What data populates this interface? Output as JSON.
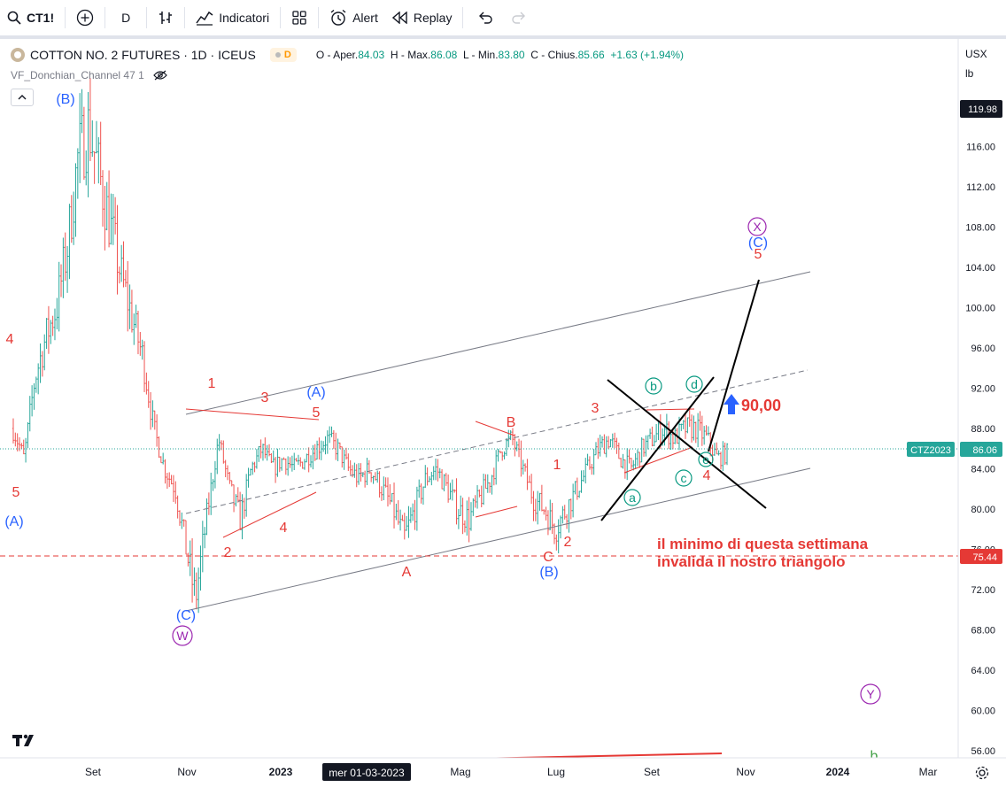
{
  "toolbar": {
    "symbol": "CT1!",
    "interval": "D",
    "indicators_label": "Indicatori",
    "alert_label": "Alert",
    "replay_label": "Replay"
  },
  "legend": {
    "title": "COTTON NO. 2 FUTURES · 1D · ICEUS",
    "badge": "D",
    "open_label": "O",
    "open_text": "- Aper.",
    "open_value": "84.03",
    "high_label": "H",
    "high_text": "- Max.",
    "high_value": "86.08",
    "low_label": "L",
    "low_text": "- Min.",
    "low_value": "83.80",
    "close_label": "C",
    "close_text": "- Chius.",
    "close_value": "85.66",
    "change": "+1.63 (+1.94%)",
    "indicator_name": "VF_Donchian_Channel 47 1"
  },
  "axis_selectors": {
    "currency": "USX",
    "unit": "lb"
  },
  "price_axis": {
    "ticks": [
      "116.00",
      "112.00",
      "108.00",
      "104.00",
      "100.00",
      "96.00",
      "92.00",
      "88.00",
      "84.00",
      "80.00",
      "76.00",
      "72.00",
      "68.00",
      "64.00",
      "60.00",
      "56.00"
    ],
    "top_label": "119.98",
    "current_symbol": "CTZ2023",
    "current_price": "86.06",
    "level_price": "75.44"
  },
  "time_axis": {
    "ticks": [
      "Set",
      "Nov",
      "2023",
      "Mag",
      "Lug",
      "Set",
      "Nov",
      "2024",
      "Mar"
    ],
    "crosshair_label": "mer 01-03-2023"
  },
  "annotations": {
    "wave_labels": [
      {
        "text": "(B)",
        "color": "#2962ff"
      },
      {
        "text": "4",
        "color": "#e53935"
      },
      {
        "text": "5",
        "color": "#e53935"
      },
      {
        "text": "(A)",
        "color": "#2962ff"
      },
      {
        "text": "1",
        "color": "#e53935"
      },
      {
        "text": "3",
        "color": "#e53935"
      },
      {
        "text": "(A)",
        "color": "#2962ff"
      },
      {
        "text": "5",
        "color": "#e53935"
      },
      {
        "text": "2",
        "color": "#e53935"
      },
      {
        "text": "4",
        "color": "#e53935"
      },
      {
        "text": "(C)",
        "color": "#2962ff"
      },
      {
        "text": "A",
        "color": "#e53935"
      },
      {
        "text": "B",
        "color": "#e53935"
      },
      {
        "text": "1",
        "color": "#e53935"
      },
      {
        "text": "C",
        "color": "#e53935"
      },
      {
        "text": "(B)",
        "color": "#2962ff"
      },
      {
        "text": "2",
        "color": "#e53935"
      },
      {
        "text": "3",
        "color": "#e53935"
      },
      {
        "text": "4",
        "color": "#e53935"
      },
      {
        "text": "(C)",
        "color": "#2962ff"
      },
      {
        "text": "5",
        "color": "#e53935"
      },
      {
        "text": "b",
        "color": "#43a047"
      }
    ],
    "circled_labels": [
      {
        "text": "W",
        "color": "#9c27b0"
      },
      {
        "text": "X",
        "color": "#9c27b0"
      },
      {
        "text": "Y",
        "color": "#9c27b0"
      },
      {
        "text": "a",
        "color": "#089981"
      },
      {
        "text": "b",
        "color": "#089981"
      },
      {
        "text": "c",
        "color": "#089981"
      },
      {
        "text": "d",
        "color": "#089981"
      },
      {
        "text": "e",
        "color": "#089981"
      }
    ],
    "target_label": "90,00",
    "note_line1": "il minimo di questa settimana",
    "note_line2": "invalida il nostro triangolo"
  },
  "colors": {
    "up": "#26a69a",
    "down": "#ef5350",
    "annotation_red": "#e53935",
    "wave_blue": "#2962ff",
    "circle_purple": "#9c27b0",
    "circle_green": "#089981",
    "level_line": "#e53935",
    "current_badge": "#26a69a"
  },
  "chart_data": {
    "type": "candlestick",
    "title": "COTTON NO. 2 FUTURES · 1D · ICEUS",
    "ylim": [
      55,
      121
    ],
    "yscale": "linear",
    "grid": false,
    "close_path": [
      {
        "date": "2022-07-05",
        "close": 88
      },
      {
        "date": "2022-07-12",
        "close": 85
      },
      {
        "date": "2022-07-19",
        "close": 93
      },
      {
        "date": "2022-07-26",
        "close": 97
      },
      {
        "date": "2022-08-02",
        "close": 100
      },
      {
        "date": "2022-08-09",
        "close": 106
      },
      {
        "date": "2022-08-16",
        "close": 115
      },
      {
        "date": "2022-08-23",
        "close": 118
      },
      {
        "date": "2022-08-30",
        "close": 113
      },
      {
        "date": "2022-09-06",
        "close": 108
      },
      {
        "date": "2022-09-13",
        "close": 103
      },
      {
        "date": "2022-09-20",
        "close": 99
      },
      {
        "date": "2022-09-27",
        "close": 95
      },
      {
        "date": "2022-10-04",
        "close": 88
      },
      {
        "date": "2022-10-11",
        "close": 84
      },
      {
        "date": "2022-10-18",
        "close": 82
      },
      {
        "date": "2022-10-25",
        "close": 76
      },
      {
        "date": "2022-10-31",
        "close": 71
      },
      {
        "date": "2022-11-08",
        "close": 80
      },
      {
        "date": "2022-11-15",
        "close": 87
      },
      {
        "date": "2022-11-22",
        "close": 82
      },
      {
        "date": "2022-11-29",
        "close": 79
      },
      {
        "date": "2022-12-06",
        "close": 84
      },
      {
        "date": "2022-12-13",
        "close": 86
      },
      {
        "date": "2022-12-20",
        "close": 84
      },
      {
        "date": "2022-12-27",
        "close": 85
      },
      {
        "date": "2023-01-03",
        "close": 84
      },
      {
        "date": "2023-01-10",
        "close": 85
      },
      {
        "date": "2023-01-17",
        "close": 86
      },
      {
        "date": "2023-01-24",
        "close": 87
      },
      {
        "date": "2023-01-31",
        "close": 86
      },
      {
        "date": "2023-02-07",
        "close": 84
      },
      {
        "date": "2023-02-14",
        "close": 83
      },
      {
        "date": "2023-02-21",
        "close": 84
      },
      {
        "date": "2023-03-01",
        "close": 82
      },
      {
        "date": "2023-03-08",
        "close": 80
      },
      {
        "date": "2023-03-15",
        "close": 77
      },
      {
        "date": "2023-03-22",
        "close": 80
      },
      {
        "date": "2023-03-29",
        "close": 83
      },
      {
        "date": "2023-04-05",
        "close": 84
      },
      {
        "date": "2023-04-12",
        "close": 82
      },
      {
        "date": "2023-04-19",
        "close": 80
      },
      {
        "date": "2023-04-26",
        "close": 79
      },
      {
        "date": "2023-05-03",
        "close": 81
      },
      {
        "date": "2023-05-10",
        "close": 83
      },
      {
        "date": "2023-05-17",
        "close": 86
      },
      {
        "date": "2023-05-24",
        "close": 87
      },
      {
        "date": "2023-05-31",
        "close": 84
      },
      {
        "date": "2023-06-07",
        "close": 81
      },
      {
        "date": "2023-06-14",
        "close": 80
      },
      {
        "date": "2023-06-21",
        "close": 78
      },
      {
        "date": "2023-06-28",
        "close": 80
      },
      {
        "date": "2023-07-05",
        "close": 82
      },
      {
        "date": "2023-07-12",
        "close": 84
      },
      {
        "date": "2023-07-19",
        "close": 86
      },
      {
        "date": "2023-07-26",
        "close": 87
      },
      {
        "date": "2023-08-02",
        "close": 85
      },
      {
        "date": "2023-08-09",
        "close": 84
      },
      {
        "date": "2023-08-16",
        "close": 86
      },
      {
        "date": "2023-08-23",
        "close": 87
      },
      {
        "date": "2023-08-30",
        "close": 88
      },
      {
        "date": "2023-09-06",
        "close": 87
      },
      {
        "date": "2023-09-13",
        "close": 88
      },
      {
        "date": "2023-09-20",
        "close": 88
      },
      {
        "date": "2023-09-27",
        "close": 87
      },
      {
        "date": "2023-10-04",
        "close": 85
      },
      {
        "date": "2023-10-11",
        "close": 85.66
      }
    ]
  }
}
